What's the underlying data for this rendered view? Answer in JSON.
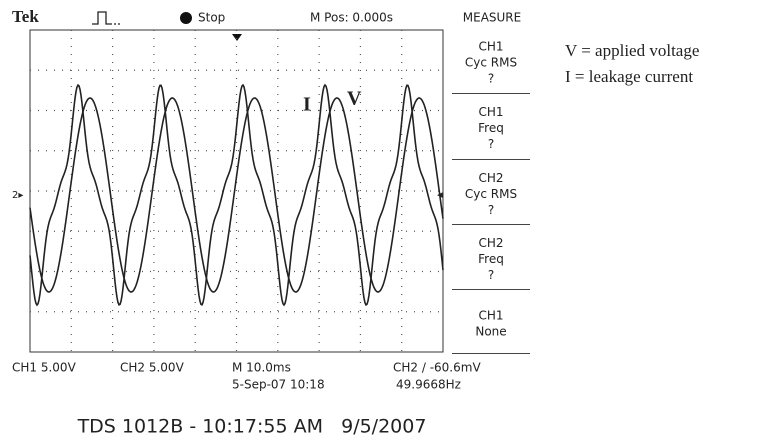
{
  "header": {
    "brand": "Tek",
    "status": "Stop",
    "position": "M Pos: 0.000s"
  },
  "menu": {
    "title": "MEASURE",
    "items": [
      {
        "lines": [
          "CH1",
          "Cyc RMS",
          "?"
        ]
      },
      {
        "lines": [
          "CH1",
          "Freq",
          "?"
        ]
      },
      {
        "lines": [
          "CH2",
          "Cyc RMS",
          "?"
        ]
      },
      {
        "lines": [
          "CH2",
          "Freq",
          "?"
        ]
      },
      {
        "lines": [
          "CH1",
          "None"
        ]
      }
    ]
  },
  "status_bar": {
    "ch1": "CH1  5.00V",
    "ch2": "CH2  5.00V",
    "timebase": "M 10.0ms",
    "date": "5-Sep-07 10:18",
    "trigger": "CH2 / -60.6mV",
    "frequency": "49.9668Hz"
  },
  "footer": "TDS 1012B - 10:17:55 AM   9/5/2007",
  "legend": [
    "V = applied voltage",
    "I  = leakage current"
  ],
  "trace_labels": [
    "I",
    "V"
  ]
}
